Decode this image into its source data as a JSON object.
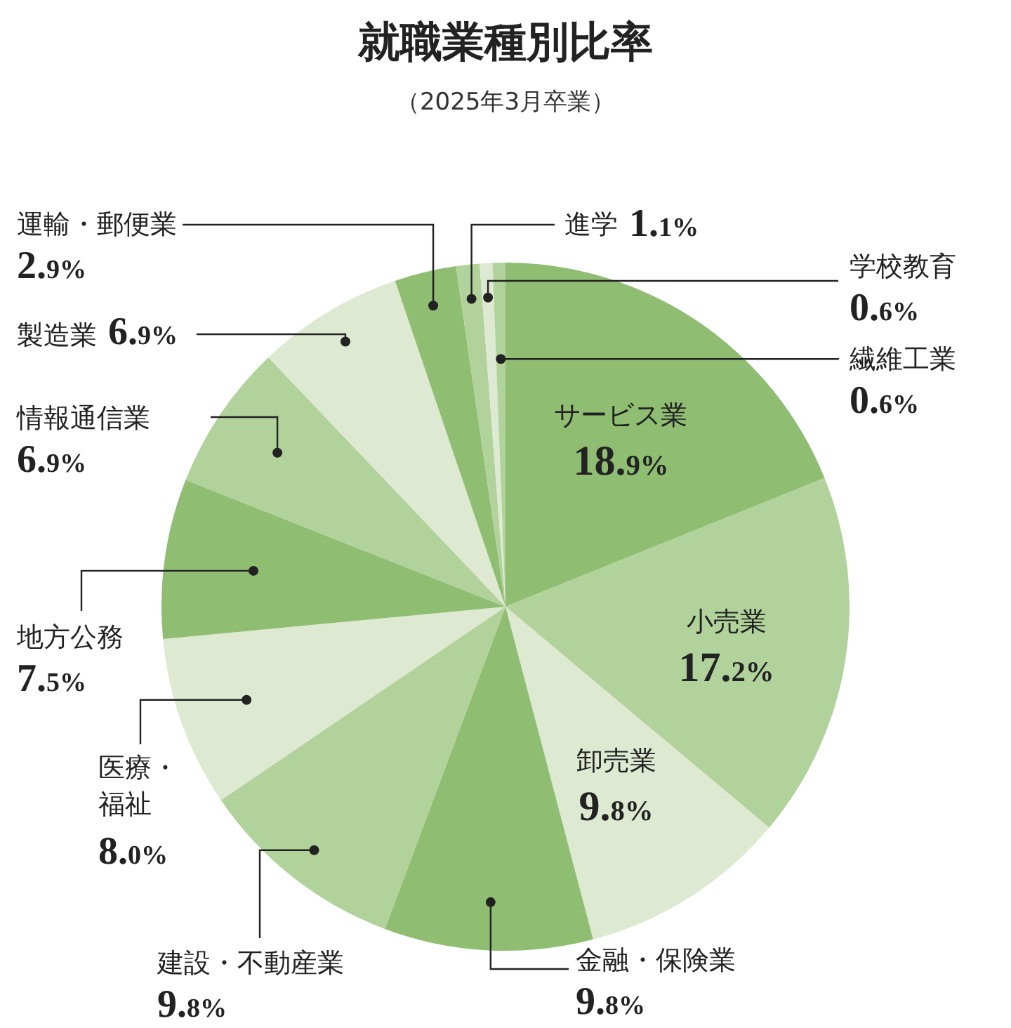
{
  "chart_data": {
    "type": "pie",
    "title": "就職業種別比率",
    "subtitle": "（2025年3月卒業）",
    "categories": [
      "サービス業",
      "小売業",
      "卸売業",
      "金融・保険業",
      "建設・不動産業",
      "医療・福祉",
      "地方公務",
      "情報通信業",
      "製造業",
      "運輸・郵便業",
      "進学",
      "学校教育",
      "繊維工業"
    ],
    "values": [
      18.9,
      17.2,
      9.8,
      9.8,
      9.8,
      8.0,
      7.5,
      6.9,
      6.9,
      2.9,
      1.1,
      0.6,
      0.6
    ],
    "value_labels": [
      "18.9%",
      "17.2%",
      "9.8%",
      "9.8%",
      "9.8%",
      "8.0%",
      "7.5%",
      "6.9%",
      "6.9%",
      "2.9%",
      "1.1%",
      "0.6%",
      "0.6%"
    ],
    "colors": [
      "#8fbd72",
      "#b1d29b",
      "#dde9d0",
      "#8fbd72",
      "#b1d29b",
      "#dde9d0",
      "#8fbd72",
      "#b1d29b",
      "#dde9d0",
      "#8fbd72",
      "#b1d29b",
      "#dde9d0",
      "#b1d29b"
    ]
  }
}
